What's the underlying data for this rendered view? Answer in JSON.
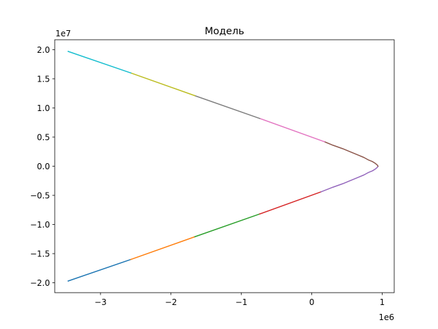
{
  "chart_data": {
    "type": "line",
    "title": "Модель",
    "xlabel": "",
    "ylabel": "",
    "x_offset_label": "1e6",
    "y_offset_label": "1e7",
    "xlim": [
      -3.65,
      1.17
    ],
    "ylim": [
      -2.17,
      2.17
    ],
    "x_unit_scale": 1000000,
    "y_unit_scale": 10000000,
    "xticks": [
      -3,
      -2,
      -1,
      0,
      1
    ],
    "xtick_labels": [
      "−3",
      "−2",
      "−1",
      "0",
      "1"
    ],
    "yticks": [
      -2.0,
      -1.5,
      -1.0,
      -0.5,
      0.0,
      0.5,
      1.0,
      1.5,
      2.0
    ],
    "ytick_labels": [
      "−2.0",
      "−1.5",
      "−1.0",
      "−0.5",
      "0.0",
      "0.5",
      "1.0",
      "1.5",
      "2.0"
    ],
    "grid": false,
    "legend": false,
    "series": [
      {
        "color": "#1f77b4",
        "x": [
          -3.46,
          -2.57
        ],
        "y": [
          -1.97,
          -1.6
        ]
      },
      {
        "color": "#ff7f0e",
        "x": [
          -2.57,
          -1.66
        ],
        "y": [
          -1.6,
          -1.21
        ]
      },
      {
        "color": "#2ca02c",
        "x": [
          -1.66,
          -0.74
        ],
        "y": [
          -1.21,
          -0.82
        ]
      },
      {
        "color": "#d62728",
        "x": [
          -0.74,
          0.13
        ],
        "y": [
          -0.82,
          -0.44
        ]
      },
      {
        "color": "#9467bd",
        "x": [
          0.13,
          0.3,
          0.44,
          0.56,
          0.66,
          0.74,
          0.8,
          0.86,
          0.9,
          0.93,
          0.94
        ],
        "y": [
          -0.44,
          -0.36,
          -0.3,
          -0.24,
          -0.19,
          -0.15,
          -0.11,
          -0.08,
          -0.05,
          -0.02,
          0.0
        ]
      },
      {
        "color": "#8c564b",
        "x": [
          0.94,
          0.93,
          0.9,
          0.86,
          0.8,
          0.74,
          0.66,
          0.56,
          0.44,
          0.3,
          0.18
        ],
        "y": [
          0.0,
          0.02,
          0.05,
          0.08,
          0.11,
          0.15,
          0.19,
          0.24,
          0.3,
          0.36,
          0.42
        ]
      },
      {
        "color": "#e377c2",
        "x": [
          0.18,
          -0.74
        ],
        "y": [
          0.42,
          0.82
        ]
      },
      {
        "color": "#7f7f7f",
        "x": [
          -0.74,
          -1.66
        ],
        "y": [
          0.82,
          1.21
        ]
      },
      {
        "color": "#bcbd22",
        "x": [
          -1.66,
          -2.57
        ],
        "y": [
          1.21,
          1.6
        ]
      },
      {
        "color": "#17becf",
        "x": [
          -2.57,
          -3.46
        ],
        "y": [
          1.6,
          1.97
        ]
      }
    ]
  }
}
